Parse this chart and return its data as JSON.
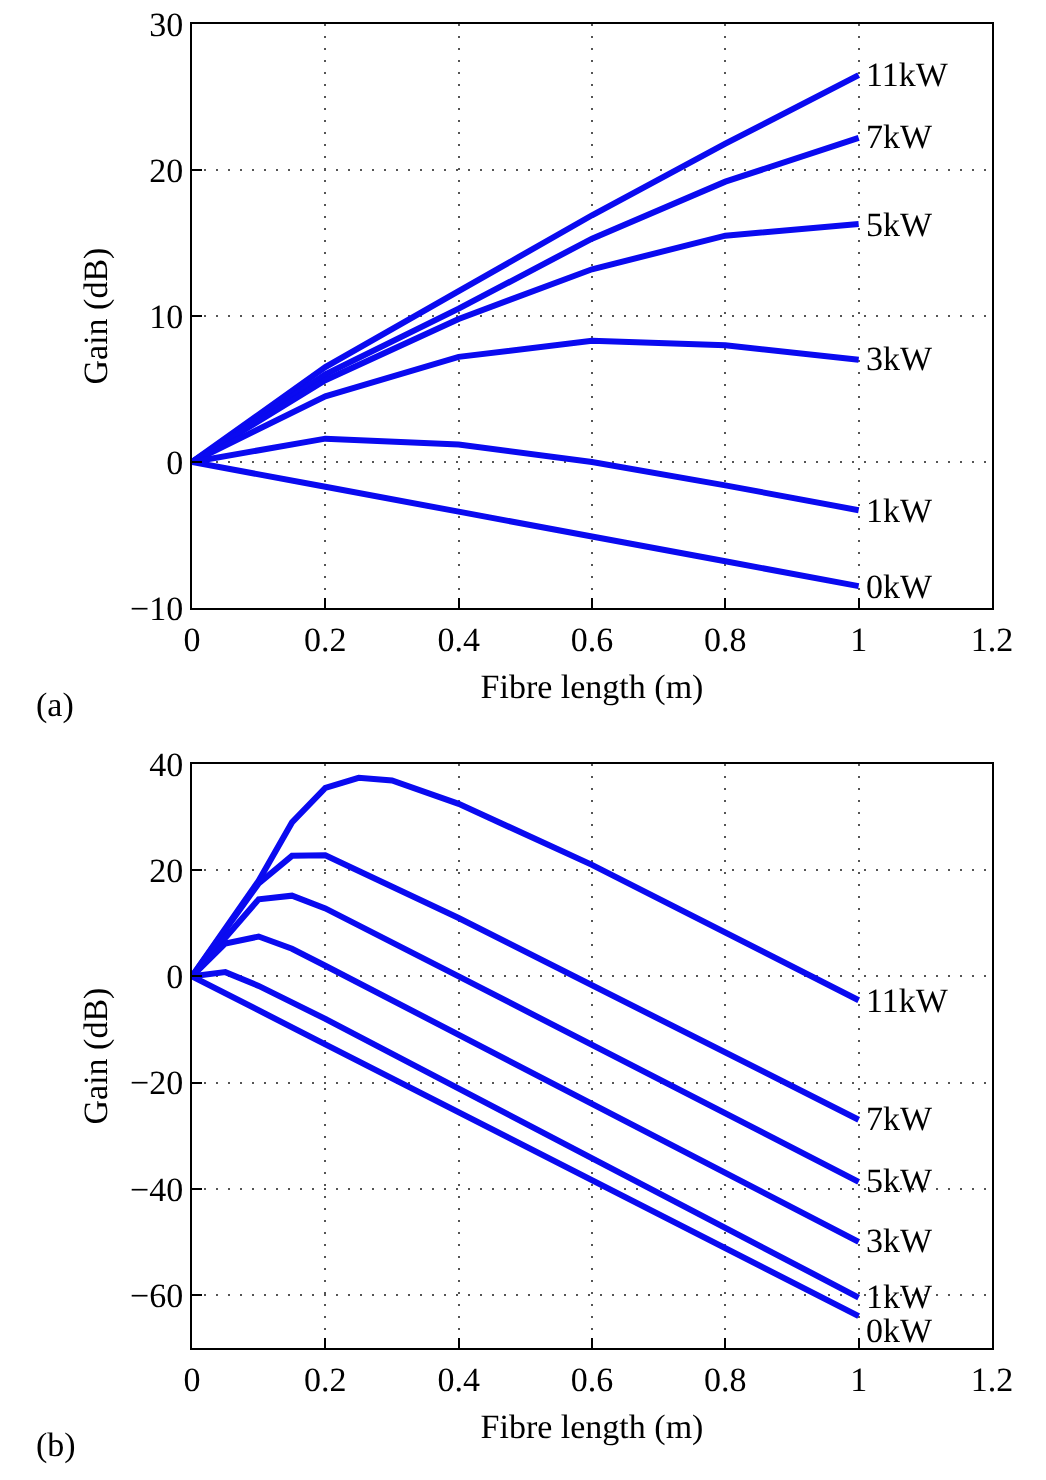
{
  "chart_data": [
    {
      "type": "line",
      "xlabel": "Fibre length (m)",
      "ylabel": "Gain (dB)",
      "annotations": [
        "(a)"
      ],
      "x": [
        0,
        0.2,
        0.4,
        0.6,
        0.8,
        1
      ],
      "xlim": [
        0,
        1.2
      ],
      "xticks": [
        0,
        0.2,
        0.4,
        0.6,
        0.8,
        1,
        1.2
      ],
      "ylim": [
        -10,
        30
      ],
      "yticks": [
        -10,
        0,
        10,
        20,
        30
      ],
      "grid": true,
      "line_style": "solid",
      "series": [
        {
          "name": "11kW",
          "color": "#0a0af0",
          "values": [
            0,
            6.5,
            11.7,
            16.9,
            21.8,
            26.5
          ]
        },
        {
          "name": "7kW",
          "color": "#0a0af0",
          "values": [
            0,
            6.0,
            10.5,
            15.3,
            19.2,
            22.2
          ]
        },
        {
          "name": "5kW",
          "color": "#0a0af0",
          "values": [
            0,
            5.6,
            9.8,
            13.2,
            15.5,
            16.3
          ]
        },
        {
          "name": "3kW",
          "color": "#0a0af0",
          "values": [
            0,
            4.5,
            7.2,
            8.3,
            8.0,
            7.0
          ]
        },
        {
          "name": "1kW",
          "color": "#0a0af0",
          "values": [
            0,
            1.6,
            1.2,
            0,
            -1.6,
            -3.3
          ]
        },
        {
          "name": "0kW",
          "color": "#0a0af0",
          "values": [
            0,
            -1.7,
            -3.4,
            -5.1,
            -6.8,
            -8.5
          ]
        }
      ]
    },
    {
      "type": "line",
      "xlabel": "Fibre length (m)",
      "ylabel": "Gain (dB)",
      "annotations": [
        "(b)"
      ],
      "xlim": [
        0,
        1.2
      ],
      "xticks": [
        0,
        0.2,
        0.4,
        0.6,
        0.8,
        1,
        1.2
      ],
      "ylim": [
        -70,
        40
      ],
      "yticks": [
        -60,
        -40,
        -20,
        0,
        20,
        40
      ],
      "grid": true,
      "line_style": "solid",
      "series": [
        {
          "name": "11kW",
          "color": "#0a0af0",
          "x": [
            0,
            0.1,
            0.15,
            0.2,
            0.25,
            0.3,
            0.4,
            0.6,
            1
          ],
          "values": [
            0,
            18,
            29,
            35.5,
            37.4,
            36.9,
            32.5,
            21,
            -4.5
          ]
        },
        {
          "name": "7kW",
          "color": "#0a0af0",
          "x": [
            0,
            0.1,
            0.15,
            0.2,
            0.4,
            1
          ],
          "values": [
            0,
            17.5,
            22.7,
            22.8,
            11,
            -27
          ]
        },
        {
          "name": "5kW",
          "color": "#0a0af0",
          "x": [
            0,
            0.1,
            0.15,
            0.2,
            0.4,
            1
          ],
          "values": [
            0,
            14.5,
            15.2,
            12.8,
            0,
            -38.7
          ]
        },
        {
          "name": "3kW",
          "color": "#0a0af0",
          "x": [
            0,
            0.05,
            0.1,
            0.15,
            0.2,
            1
          ],
          "values": [
            0,
            6.2,
            7.5,
            5.2,
            2,
            -50
          ]
        },
        {
          "name": "1kW",
          "color": "#0a0af0",
          "x": [
            0,
            0.05,
            0.1,
            0.2,
            1
          ],
          "values": [
            0,
            0.8,
            -1.8,
            -8,
            -60.5
          ]
        },
        {
          "name": "0kW",
          "color": "#0a0af0",
          "x": [
            0,
            0.2,
            1
          ],
          "values": [
            0,
            -12.8,
            -64
          ]
        }
      ]
    }
  ]
}
